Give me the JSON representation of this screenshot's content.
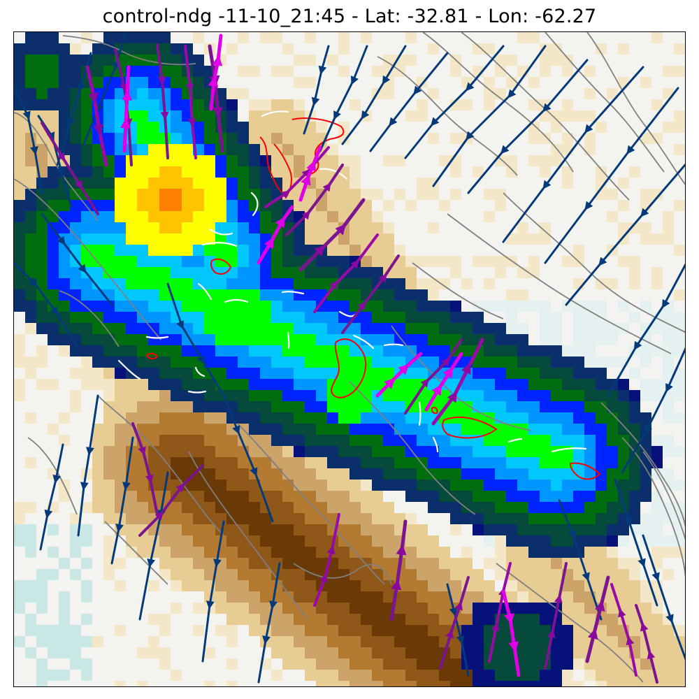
{
  "figure": {
    "title": "control-ndg -11-10_21:45 - Lat: -32.81 - Lon: -62.27"
  },
  "map": {
    "layers": [
      "background-field",
      "precipitation-field",
      "gray-contours",
      "red-contours",
      "white-contours",
      "blue-streamlines",
      "purple-streamlines",
      "magenta-streamlines"
    ],
    "colors": {
      "frame": "#000000",
      "gray_contour": "#808080",
      "red_contour": "#ff0000",
      "white_contour": "#ffffff",
      "streamline_blue": "#043a7a",
      "streamline_purple": "#7a1490",
      "streamline_violet": "#9a0aa8",
      "streamline_magenta": "#e000e8",
      "precip_scale": [
        "#06127a",
        "#0a2f6b",
        "#064a3c",
        "#006e10",
        "#0024ff",
        "#0096ff",
        "#00c8ff",
        "#00ff00",
        "#ffff00",
        "#ffc400",
        "#ff8000"
      ],
      "terrain_scale": [
        "#c9e8e6",
        "#e4f1f0",
        "#f3f3ef",
        "#f3e7c8",
        "#e7cd93",
        "#cca46a",
        "#b47a32",
        "#8f5718",
        "#6a3a06"
      ]
    }
  }
}
